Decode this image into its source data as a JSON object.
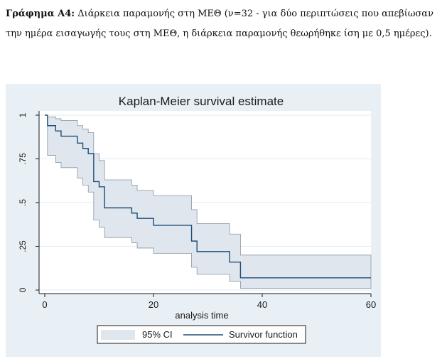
{
  "caption": {
    "label": "Γράφημα Α4:",
    "text": " Διάρκεια παραμονής στη ΜΕΘ (ν=32 - για δύο περιπτώσεις που απεβίωσαν την ημέρα εισαγωγής τους στη ΜΕΘ, η διάρκεια παραμονής θεωρήθηκε ίση με 0,5 ημέρες)."
  },
  "colors": {
    "figure_bg": "#e9f0f5",
    "plot_bg": "#ffffff",
    "ci_fill": "#dfe6ed",
    "ci_edge": "#8a96a3",
    "survivor_line": "#1f4e79",
    "grid": "#e3ebf1"
  },
  "chart_data": {
    "type": "line",
    "title": "Kaplan-Meier survival estimate",
    "xlabel": "analysis time",
    "ylabel": "",
    "xlim": [
      0,
      60
    ],
    "ylim": [
      0,
      1
    ],
    "xticks": [
      0,
      20,
      40,
      60
    ],
    "xtick_labels": [
      "0",
      "20",
      "40",
      "60"
    ],
    "yticks": [
      0,
      0.25,
      0.5,
      0.75,
      1
    ],
    "ytick_labels": [
      "0",
      ".25",
      ".5",
      ".75",
      "1"
    ],
    "grid": true,
    "legend_placement": "bottom",
    "legend": [
      {
        "label": "95% CI",
        "kind": "area"
      },
      {
        "label": "Survivor function",
        "kind": "line"
      }
    ],
    "series": [
      {
        "name": "Survivor function",
        "x": [
          0,
          0.5,
          2,
          3,
          6,
          7,
          8,
          9,
          10,
          11,
          16,
          17,
          20,
          27,
          28,
          34,
          36,
          60
        ],
        "y": [
          1,
          0.94,
          0.91,
          0.88,
          0.84,
          0.81,
          0.78,
          0.62,
          0.59,
          0.47,
          0.44,
          0.41,
          0.37,
          0.28,
          0.22,
          0.16,
          0.07,
          0.07
        ]
      },
      {
        "name": "95% CI upper",
        "x": [
          0,
          0.5,
          2,
          3,
          6,
          7,
          8,
          9,
          10,
          11,
          16,
          17,
          20,
          27,
          28,
          34,
          36,
          60
        ],
        "y": [
          1,
          0.99,
          0.98,
          0.97,
          0.94,
          0.92,
          0.9,
          0.78,
          0.74,
          0.63,
          0.6,
          0.57,
          0.54,
          0.46,
          0.38,
          0.32,
          0.2,
          0.2
        ]
      },
      {
        "name": "95% CI lower",
        "x": [
          0,
          0.5,
          2,
          3,
          6,
          7,
          8,
          9,
          10,
          11,
          16,
          17,
          20,
          27,
          28,
          34,
          36,
          60
        ],
        "y": [
          1,
          0.77,
          0.73,
          0.7,
          0.64,
          0.6,
          0.56,
          0.4,
          0.36,
          0.3,
          0.27,
          0.24,
          0.21,
          0.13,
          0.09,
          0.05,
          0.01,
          0.01
        ]
      }
    ]
  }
}
